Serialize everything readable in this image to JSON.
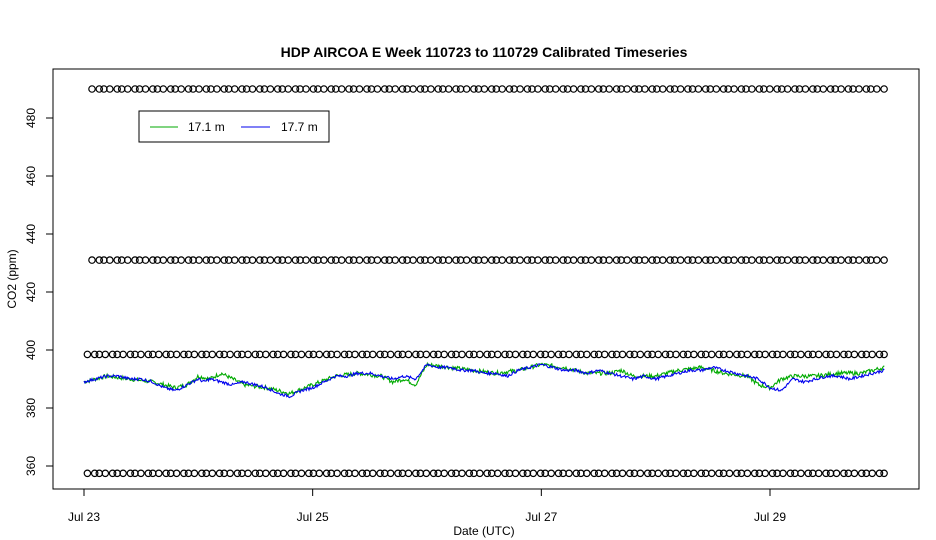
{
  "chart_data": {
    "type": "line",
    "title": "HDP AIRCOA E  Week 110723 to 110729  Calibrated Timeseries",
    "xlabel": "Date (UTC)",
    "ylabel": "CO2 (ppm)",
    "xlim": [
      0,
      7.25
    ],
    "ylim": [
      351,
      492
    ],
    "x_tick_values": [
      0,
      2,
      4,
      6
    ],
    "x_tick_labels": [
      "Jul 23",
      "Jul 25",
      "Jul 27",
      "Jul 29"
    ],
    "y_ticks": [
      360,
      380,
      400,
      420,
      440,
      460,
      480
    ],
    "y_tick_labels": [
      "360",
      "380",
      "400",
      "420",
      "440",
      "460",
      "480"
    ],
    "grid": false,
    "legend_position": "top-left",
    "legend": [
      {
        "name": "17.1 m",
        "color": "#00aa00"
      },
      {
        "name": "17.7 m",
        "color": "#0000ee"
      }
    ],
    "series": [
      {
        "name": "17.7 m",
        "color": "#0000ee",
        "x": [
          0.0,
          0.1,
          0.2,
          0.3,
          0.4,
          0.5,
          0.6,
          0.7,
          0.8,
          0.9,
          1.0,
          1.05,
          1.1,
          1.2,
          1.3,
          1.4,
          1.5,
          1.6,
          1.7,
          1.8,
          1.9,
          2.0,
          2.1,
          2.2,
          2.3,
          2.4,
          2.5,
          2.6,
          2.7,
          2.8,
          2.9,
          3.0,
          3.1,
          3.2,
          3.3,
          3.4,
          3.5,
          3.6,
          3.7,
          3.8,
          3.9,
          4.0,
          4.1,
          4.2,
          4.3,
          4.4,
          4.5,
          4.6,
          4.7,
          4.8,
          4.9,
          5.0,
          5.1,
          5.2,
          5.3,
          5.4,
          5.5,
          5.6,
          5.7,
          5.8,
          5.9,
          6.0,
          6.1,
          6.2,
          6.3,
          6.4,
          6.5,
          6.6,
          6.7,
          6.8,
          6.9,
          7.0
        ],
        "values": [
          389,
          390,
          391,
          391,
          390,
          390,
          389,
          387,
          386,
          388,
          390,
          389,
          390,
          389,
          388,
          389,
          388,
          387,
          385,
          384,
          386,
          387,
          389,
          391,
          391,
          392,
          392,
          391,
          390,
          391,
          390,
          395,
          394,
          394,
          393,
          393,
          392,
          392,
          391,
          393,
          394,
          395,
          394,
          393,
          393,
          392,
          393,
          392,
          391,
          390,
          391,
          390,
          391,
          392,
          393,
          393,
          394,
          393,
          392,
          391,
          390,
          387,
          386,
          390,
          389,
          390,
          391,
          391,
          390,
          391,
          392,
          393
        ]
      },
      {
        "name": "17.1 m",
        "color": "#00aa00",
        "x": [
          0.0,
          0.2,
          0.4,
          0.6,
          0.8,
          0.9,
          1.0,
          1.1,
          1.2,
          1.4,
          1.6,
          1.8,
          2.0,
          2.2,
          2.4,
          2.6,
          2.7,
          2.8,
          2.9,
          3.0,
          3.2,
          3.4,
          3.6,
          3.8,
          4.0,
          4.2,
          4.4,
          4.6,
          4.7,
          4.8,
          5.0,
          5.2,
          5.4,
          5.6,
          5.8,
          5.9,
          6.0,
          6.1,
          6.2,
          6.4,
          6.6,
          6.8,
          7.0
        ],
        "values": [
          389,
          391,
          390,
          389,
          387,
          388,
          391,
          390,
          392,
          388,
          387,
          385,
          388,
          391,
          392,
          391,
          389,
          390,
          388,
          395,
          394,
          393,
          392,
          393,
          395,
          394,
          392,
          392,
          393,
          391,
          391,
          393,
          394,
          392,
          391,
          388,
          387,
          390,
          391,
          391,
          392,
          392,
          394
        ]
      },
      {
        "name": "",
        "style": "points",
        "series_role": "calibration-top",
        "y": 490,
        "x_start": 0.07,
        "x_end": 7.0,
        "x_step": 0.052
      },
      {
        "name": "",
        "style": "points",
        "series_role": "calibration-upper",
        "y": 431,
        "x_start": 0.07,
        "x_end": 7.0,
        "x_step": 0.052
      },
      {
        "name": "",
        "style": "points",
        "series_role": "calibration-lower",
        "y": 398.5,
        "x_start": 0.03,
        "x_end": 7.0,
        "x_step": 0.052
      },
      {
        "name": "",
        "style": "points",
        "series_role": "calibration-bottom",
        "y": 357.5,
        "x_start": 0.03,
        "x_end": 7.0,
        "x_step": 0.052
      }
    ]
  }
}
